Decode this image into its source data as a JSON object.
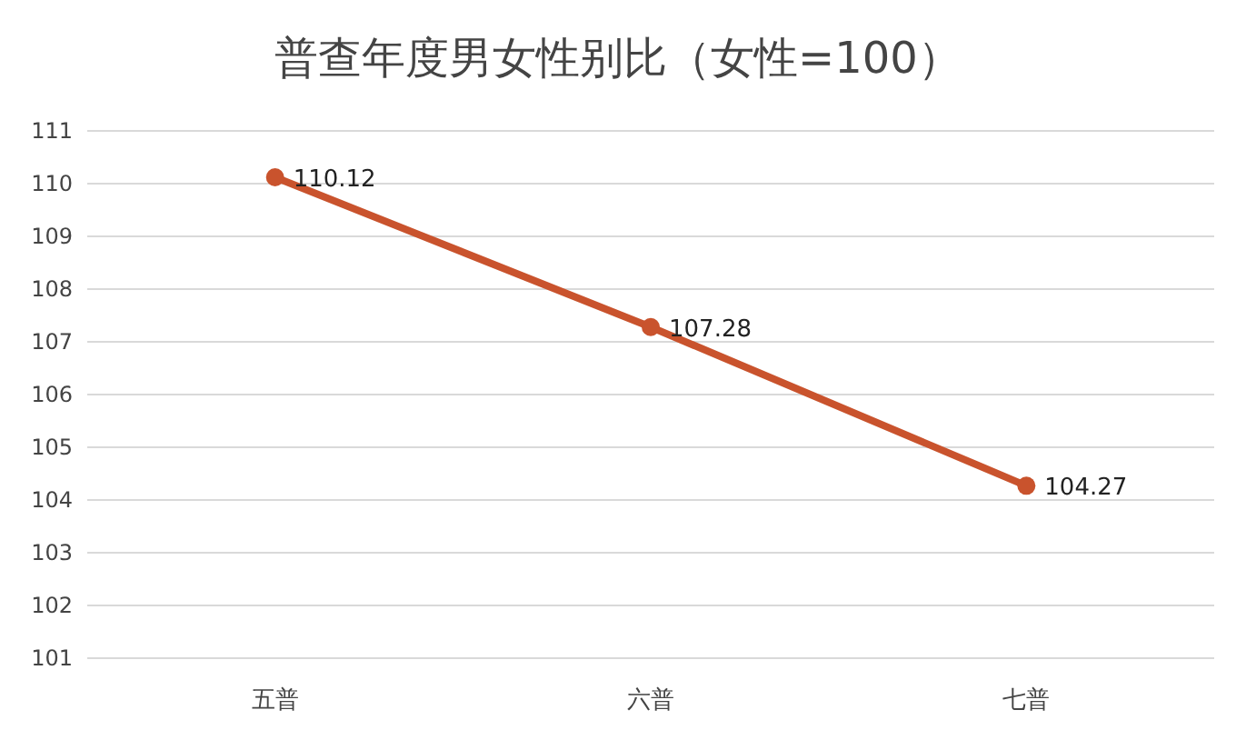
{
  "chart_data": {
    "type": "line",
    "title": "普查年度男女性别比（女性=100）",
    "categories": [
      "五普",
      "六普",
      "七普"
    ],
    "series": [
      {
        "color": "#c9532d",
        "values": [
          110.12,
          107.28,
          104.27
        ]
      }
    ],
    "ylim": [
      101,
      111
    ],
    "yticks": [
      101,
      102,
      103,
      104,
      105,
      106,
      107,
      108,
      109,
      110,
      111
    ],
    "grid": "y",
    "marker": "circle",
    "line_style": "solid",
    "data_labels": true
  }
}
